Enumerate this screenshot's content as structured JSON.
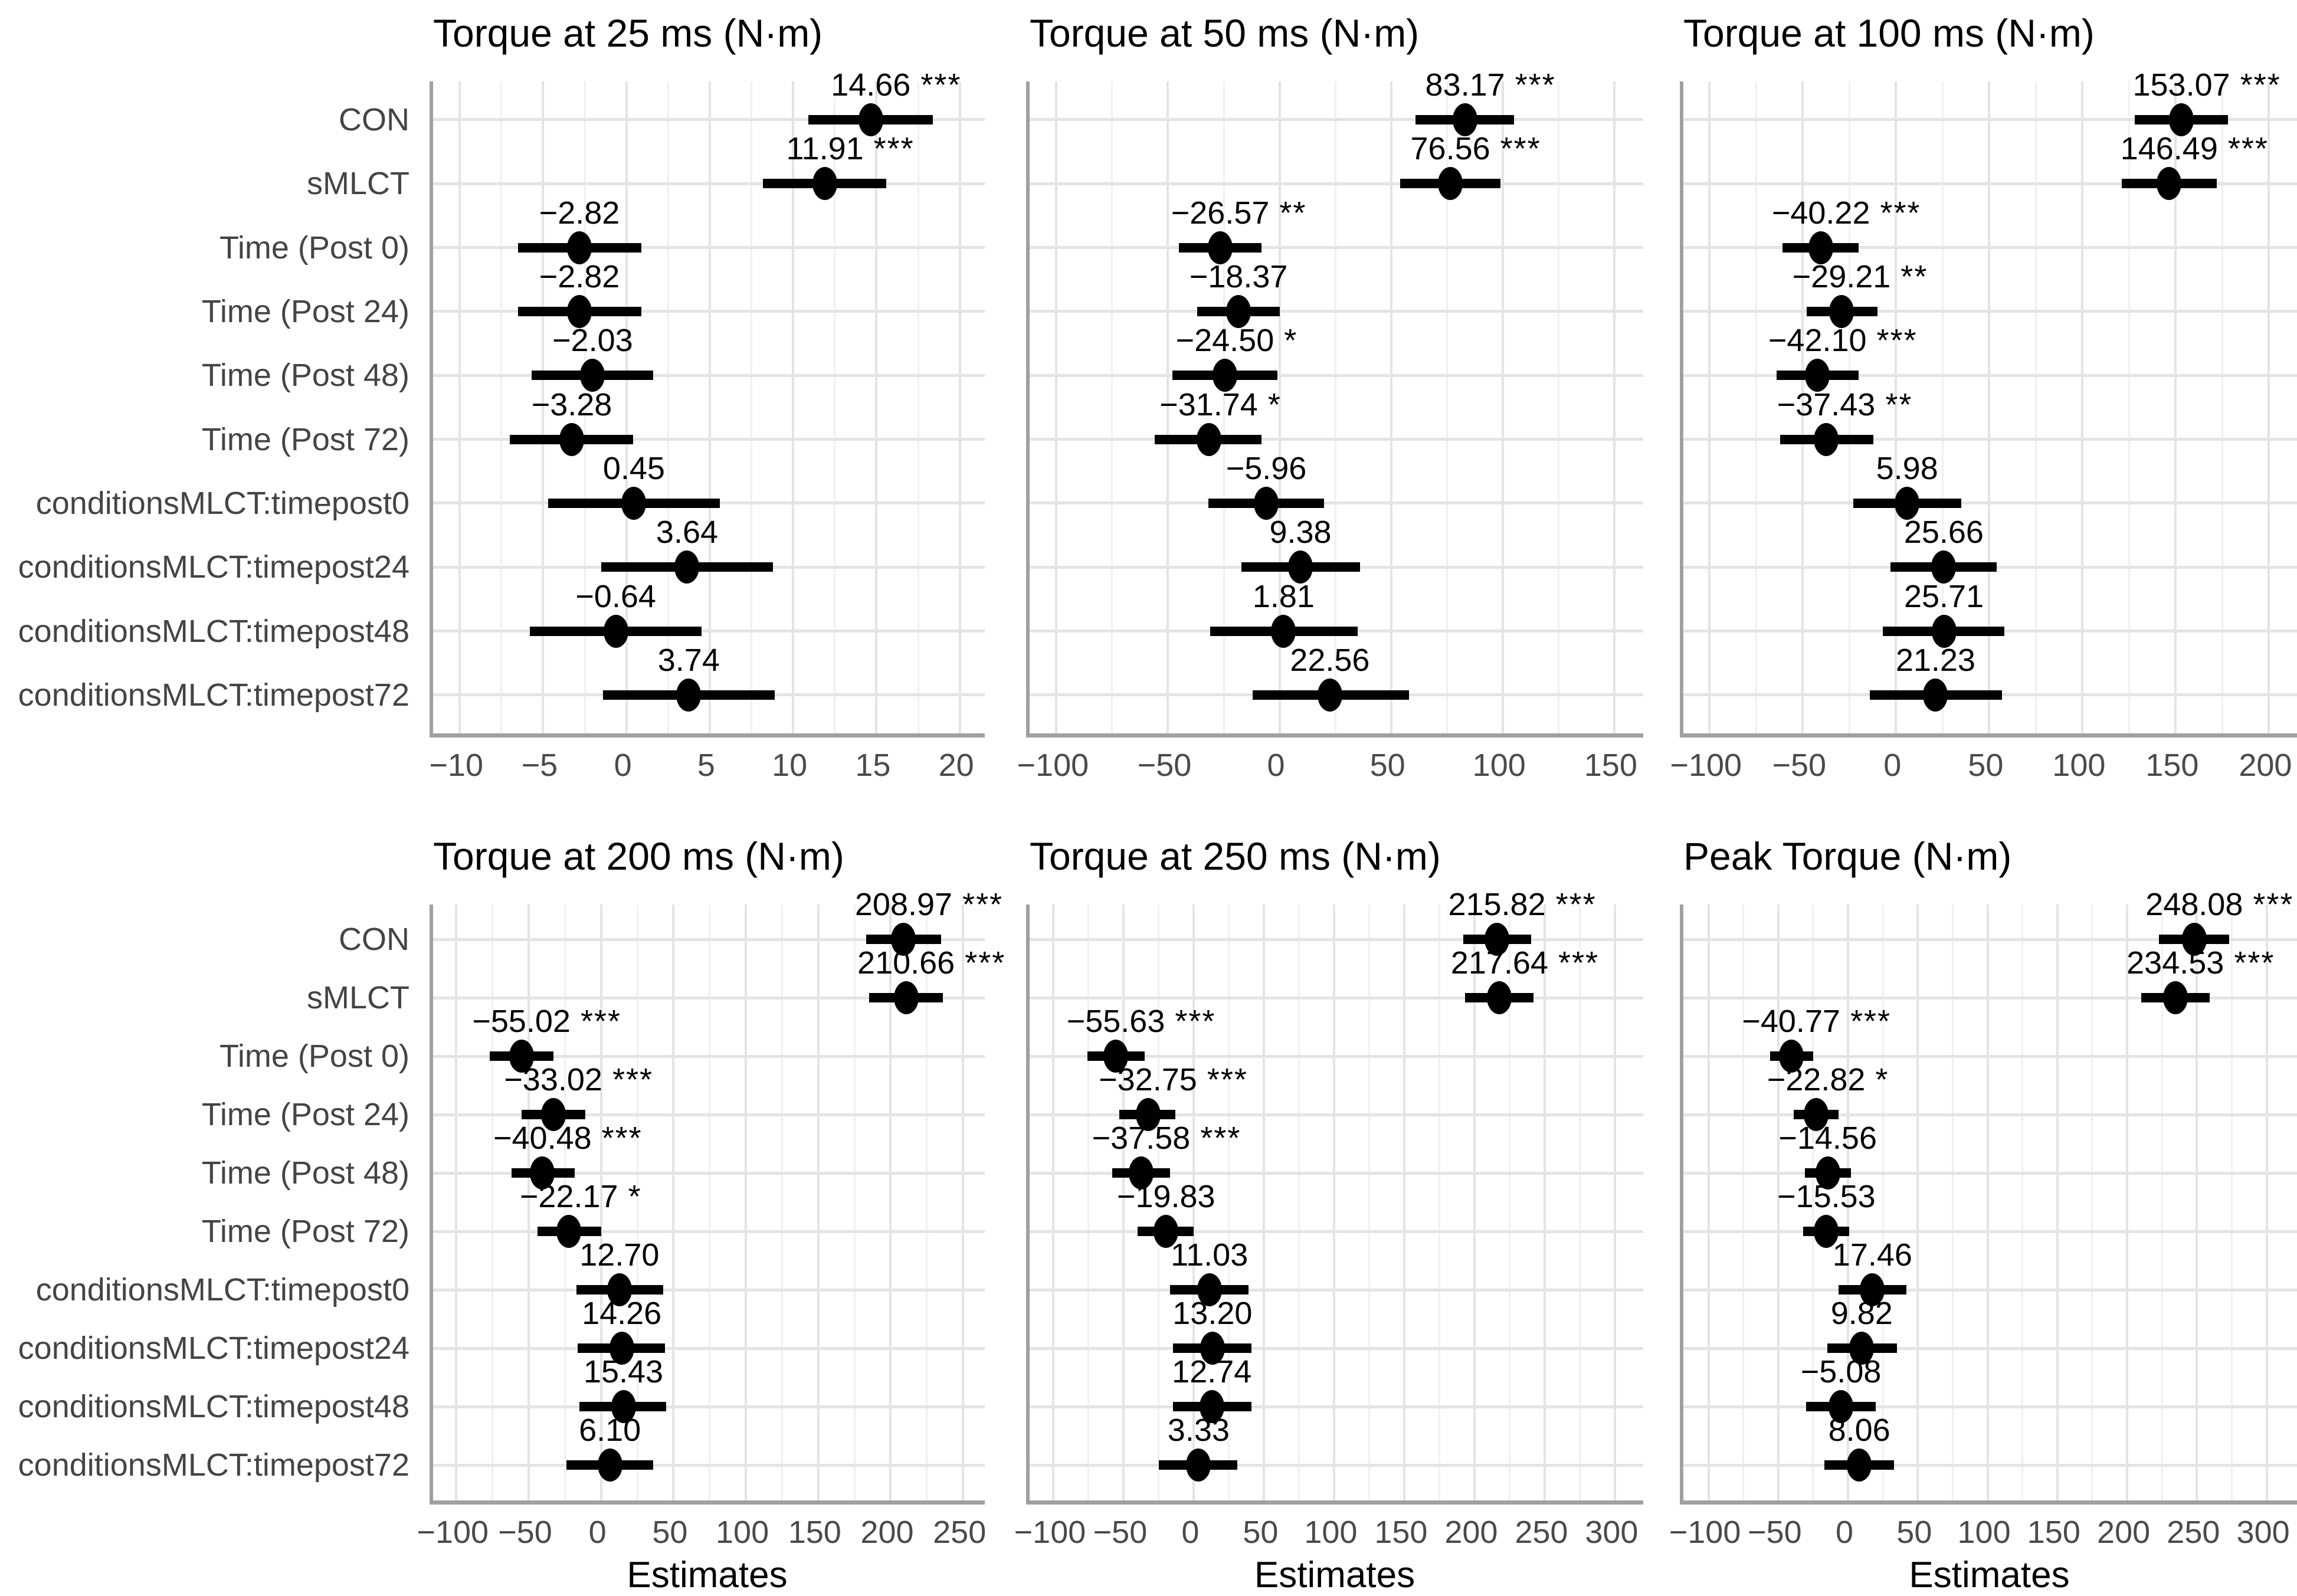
{
  "figure": {
    "estimates_label": "Estimates",
    "terms": [
      "CON",
      "sMLCT",
      "Time (Post 0)",
      "Time (Post 24)",
      "Time (Post 48)",
      "Time (Post 72)",
      "conditionsMLCT:timepost0",
      "conditionsMLCT:timepost24",
      "conditionsMLCT:timepost48",
      "conditionsMLCT:timepost72"
    ],
    "colors": {
      "point": "#000000",
      "error_bar": "#000000",
      "grid_major": "#e4e4e4",
      "grid_minor": "#f0f0f0",
      "axis_line": "#a0a0a0",
      "tick_text": "#4a4a4a",
      "y_label_text": "#444444",
      "value_label_text": "#000000",
      "background": "#ffffff"
    }
  },
  "chart_data": [
    {
      "type": "forest",
      "title": "Torque at 25 ms (N·m)",
      "xlabel": "Estimates",
      "show_xlabel": false,
      "show_y_labels": true,
      "grid": true,
      "xlim": [
        -11.6,
        21.5
      ],
      "x_ticks": [
        -10,
        -5,
        0,
        5,
        10,
        15,
        20
      ],
      "points": [
        {
          "term": "CON",
          "estimate": 14.66,
          "label": "14.66",
          "stars": "***",
          "ci": [
            10.9,
            18.4
          ]
        },
        {
          "term": "sMLCT",
          "estimate": 11.91,
          "label": "11.91",
          "stars": "***",
          "ci": [
            8.2,
            15.6
          ]
        },
        {
          "term": "Time (Post 0)",
          "estimate": -2.82,
          "label": "−2.82",
          "stars": "",
          "ci": [
            -6.5,
            0.9
          ]
        },
        {
          "term": "Time (Post 24)",
          "estimate": -2.82,
          "label": "−2.82",
          "stars": "",
          "ci": [
            -6.5,
            0.9
          ]
        },
        {
          "term": "Time (Post 48)",
          "estimate": -2.03,
          "label": "−2.03",
          "stars": "",
          "ci": [
            -5.7,
            1.6
          ]
        },
        {
          "term": "Time (Post 72)",
          "estimate": -3.28,
          "label": "−3.28",
          "stars": "",
          "ci": [
            -7.0,
            0.4
          ]
        },
        {
          "term": "conditionsMLCT:timepost0",
          "estimate": 0.45,
          "label": "0.45",
          "stars": "",
          "ci": [
            -4.7,
            5.6
          ]
        },
        {
          "term": "conditionsMLCT:timepost24",
          "estimate": 3.64,
          "label": "3.64",
          "stars": "",
          "ci": [
            -1.5,
            8.8
          ]
        },
        {
          "term": "conditionsMLCT:timepost48",
          "estimate": -0.64,
          "label": "−0.64",
          "stars": "",
          "ci": [
            -5.8,
            4.5
          ]
        },
        {
          "term": "conditionsMLCT:timepost72",
          "estimate": 3.74,
          "label": "3.74",
          "stars": "",
          "ci": [
            -1.4,
            8.9
          ]
        }
      ]
    },
    {
      "type": "forest",
      "title": "Torque at 50 ms (N·m)",
      "xlabel": "Estimates",
      "show_xlabel": false,
      "show_y_labels": false,
      "grid": true,
      "xlim": [
        -112,
        163
      ],
      "x_ticks": [
        -100,
        -50,
        0,
        50,
        100,
        150
      ],
      "points": [
        {
          "term": "CON",
          "estimate": 83.17,
          "label": "83.17",
          "stars": "***",
          "ci": [
            61,
            105
          ]
        },
        {
          "term": "sMLCT",
          "estimate": 76.56,
          "label": "76.56",
          "stars": "***",
          "ci": [
            54,
            99
          ]
        },
        {
          "term": "Time (Post 0)",
          "estimate": -26.57,
          "label": "−26.57",
          "stars": "**",
          "ci": [
            -45,
            -8
          ]
        },
        {
          "term": "Time (Post 24)",
          "estimate": -18.37,
          "label": "−18.37",
          "stars": "",
          "ci": [
            -37,
            0
          ]
        },
        {
          "term": "Time (Post 48)",
          "estimate": -24.5,
          "label": "−24.50",
          "stars": "*",
          "ci": [
            -48,
            -1
          ]
        },
        {
          "term": "Time (Post 72)",
          "estimate": -31.74,
          "label": "−31.74",
          "stars": "*",
          "ci": [
            -56,
            -8
          ]
        },
        {
          "term": "conditionsMLCT:timepost0",
          "estimate": -5.96,
          "label": "−5.96",
          "stars": "",
          "ci": [
            -32,
            20
          ]
        },
        {
          "term": "conditionsMLCT:timepost24",
          "estimate": 9.38,
          "label": "9.38",
          "stars": "",
          "ci": [
            -17,
            36
          ]
        },
        {
          "term": "conditionsMLCT:timepost48",
          "estimate": 1.81,
          "label": "1.81",
          "stars": "",
          "ci": [
            -31,
            35
          ]
        },
        {
          "term": "conditionsMLCT:timepost72",
          "estimate": 22.56,
          "label": "22.56",
          "stars": "",
          "ci": [
            -12,
            58
          ]
        }
      ]
    },
    {
      "type": "forest",
      "title": "Torque at 100 ms (N·m)",
      "xlabel": "Estimates",
      "show_xlabel": false,
      "show_y_labels": false,
      "grid": true,
      "xlim": [
        -114,
        216
      ],
      "x_ticks": [
        -100,
        -50,
        0,
        50,
        100,
        150,
        200
      ],
      "points": [
        {
          "term": "CON",
          "estimate": 153.07,
          "label": "153.07",
          "stars": "***",
          "ci": [
            128,
            178
          ]
        },
        {
          "term": "sMLCT",
          "estimate": 146.49,
          "label": "146.49",
          "stars": "***",
          "ci": [
            121,
            172
          ]
        },
        {
          "term": "Time (Post 0)",
          "estimate": -40.22,
          "label": "−40.22",
          "stars": "***",
          "ci": [
            -61,
            -20
          ]
        },
        {
          "term": "Time (Post 24)",
          "estimate": -29.21,
          "label": "−29.21",
          "stars": "**",
          "ci": [
            -48,
            -10
          ]
        },
        {
          "term": "Time (Post 48)",
          "estimate": -42.1,
          "label": "−42.10",
          "stars": "***",
          "ci": [
            -64,
            -20
          ]
        },
        {
          "term": "Time (Post 72)",
          "estimate": -37.43,
          "label": "−37.43",
          "stars": "**",
          "ci": [
            -62,
            -12
          ]
        },
        {
          "term": "conditionsMLCT:timepost0",
          "estimate": 5.98,
          "label": "5.98",
          "stars": "",
          "ci": [
            -23,
            35
          ]
        },
        {
          "term": "conditionsMLCT:timepost24",
          "estimate": 25.66,
          "label": "25.66",
          "stars": "",
          "ci": [
            -3,
            54
          ]
        },
        {
          "term": "conditionsMLCT:timepost48",
          "estimate": 25.71,
          "label": "25.71",
          "stars": "",
          "ci": [
            -7,
            58
          ]
        },
        {
          "term": "conditionsMLCT:timepost72",
          "estimate": 21.23,
          "label": "21.23",
          "stars": "",
          "ci": [
            -14,
            57
          ]
        }
      ]
    },
    {
      "type": "forest",
      "title": "Torque at 200 ms (N·m)",
      "xlabel": "Estimates",
      "show_xlabel": true,
      "show_y_labels": true,
      "grid": true,
      "xlim": [
        -116,
        265
      ],
      "x_ticks": [
        -100,
        -50,
        0,
        50,
        100,
        150,
        200,
        250
      ],
      "points": [
        {
          "term": "CON",
          "estimate": 208.97,
          "label": "208.97",
          "stars": "***",
          "ci": [
            183,
            235
          ]
        },
        {
          "term": "sMLCT",
          "estimate": 210.66,
          "label": "210.66",
          "stars": "***",
          "ci": [
            185,
            236
          ]
        },
        {
          "term": "Time (Post 0)",
          "estimate": -55.02,
          "label": "−55.02",
          "stars": "***",
          "ci": [
            -77,
            -33
          ]
        },
        {
          "term": "Time (Post 24)",
          "estimate": -33.02,
          "label": "−33.02",
          "stars": "***",
          "ci": [
            -55,
            -11
          ]
        },
        {
          "term": "Time (Post 48)",
          "estimate": -40.48,
          "label": "−40.48",
          "stars": "***",
          "ci": [
            -62,
            -18
          ]
        },
        {
          "term": "Time (Post 72)",
          "estimate": -22.17,
          "label": "−22.17",
          "stars": "*",
          "ci": [
            -44,
            0
          ]
        },
        {
          "term": "conditionsMLCT:timepost0",
          "estimate": 12.7,
          "label": "12.70",
          "stars": "",
          "ci": [
            -17,
            43
          ]
        },
        {
          "term": "conditionsMLCT:timepost24",
          "estimate": 14.26,
          "label": "14.26",
          "stars": "",
          "ci": [
            -16,
            44
          ]
        },
        {
          "term": "conditionsMLCT:timepost48",
          "estimate": 15.43,
          "label": "15.43",
          "stars": "",
          "ci": [
            -15,
            45
          ]
        },
        {
          "term": "conditionsMLCT:timepost72",
          "estimate": 6.1,
          "label": "6.10",
          "stars": "",
          "ci": [
            -24,
            36
          ]
        }
      ]
    },
    {
      "type": "forest",
      "title": "Torque at 250 ms (N·m)",
      "xlabel": "Estimates",
      "show_xlabel": true,
      "show_y_labels": false,
      "grid": true,
      "xlim": [
        -117,
        320
      ],
      "x_ticks": [
        -100,
        -50,
        0,
        50,
        100,
        150,
        200,
        250,
        300
      ],
      "points": [
        {
          "term": "CON",
          "estimate": 215.82,
          "label": "215.82",
          "stars": "***",
          "ci": [
            192,
            240
          ]
        },
        {
          "term": "sMLCT",
          "estimate": 217.64,
          "label": "217.64",
          "stars": "***",
          "ci": [
            193,
            242
          ]
        },
        {
          "term": "Time (Post 0)",
          "estimate": -55.63,
          "label": "−55.63",
          "stars": "***",
          "ci": [
            -76,
            -35
          ]
        },
        {
          "term": "Time (Post 24)",
          "estimate": -32.75,
          "label": "−32.75",
          "stars": "***",
          "ci": [
            -53,
            -13
          ]
        },
        {
          "term": "Time (Post 48)",
          "estimate": -37.58,
          "label": "−37.58",
          "stars": "***",
          "ci": [
            -58,
            -17
          ]
        },
        {
          "term": "Time (Post 72)",
          "estimate": -19.83,
          "label": "−19.83",
          "stars": "",
          "ci": [
            -40,
            0
          ]
        },
        {
          "term": "conditionsMLCT:timepost0",
          "estimate": 11.03,
          "label": "11.03",
          "stars": "",
          "ci": [
            -17,
            39
          ]
        },
        {
          "term": "conditionsMLCT:timepost24",
          "estimate": 13.2,
          "label": "13.20",
          "stars": "",
          "ci": [
            -15,
            41
          ]
        },
        {
          "term": "conditionsMLCT:timepost48",
          "estimate": 12.74,
          "label": "12.74",
          "stars": "",
          "ci": [
            -15,
            41
          ]
        },
        {
          "term": "conditionsMLCT:timepost72",
          "estimate": 3.33,
          "label": "3.33",
          "stars": "",
          "ci": [
            -25,
            31
          ]
        }
      ]
    },
    {
      "type": "forest",
      "title": "Peak Torque (N·m)",
      "xlabel": "Estimates",
      "show_xlabel": true,
      "show_y_labels": false,
      "grid": true,
      "xlim": [
        -118,
        323
      ],
      "x_ticks": [
        -100,
        -50,
        0,
        50,
        100,
        150,
        200,
        250,
        300
      ],
      "points": [
        {
          "term": "CON",
          "estimate": 248.08,
          "label": "248.08",
          "stars": "***",
          "ci": [
            223,
            273
          ]
        },
        {
          "term": "sMLCT",
          "estimate": 234.53,
          "label": "234.53",
          "stars": "***",
          "ci": [
            210,
            259
          ]
        },
        {
          "term": "Time (Post 0)",
          "estimate": -40.77,
          "label": "−40.77",
          "stars": "***",
          "ci": [
            -56,
            -25
          ]
        },
        {
          "term": "Time (Post 24)",
          "estimate": -22.82,
          "label": "−22.82",
          "stars": "*",
          "ci": [
            -39,
            -7
          ]
        },
        {
          "term": "Time (Post 48)",
          "estimate": -14.56,
          "label": "−14.56",
          "stars": "",
          "ci": [
            -31,
            2
          ]
        },
        {
          "term": "Time (Post 72)",
          "estimate": -15.53,
          "label": "−15.53",
          "stars": "",
          "ci": [
            -32,
            1
          ]
        },
        {
          "term": "conditionsMLCT:timepost0",
          "estimate": 17.46,
          "label": "17.46",
          "stars": "",
          "ci": [
            -7,
            42
          ]
        },
        {
          "term": "conditionsMLCT:timepost24",
          "estimate": 9.82,
          "label": "9.82",
          "stars": "",
          "ci": [
            -15,
            35
          ]
        },
        {
          "term": "conditionsMLCT:timepost48",
          "estimate": -5.08,
          "label": "−5.08",
          "stars": "",
          "ci": [
            -30,
            20
          ]
        },
        {
          "term": "conditionsMLCT:timepost72",
          "estimate": 8.06,
          "label": "8.06",
          "stars": "",
          "ci": [
            -17,
            33
          ]
        }
      ]
    }
  ]
}
